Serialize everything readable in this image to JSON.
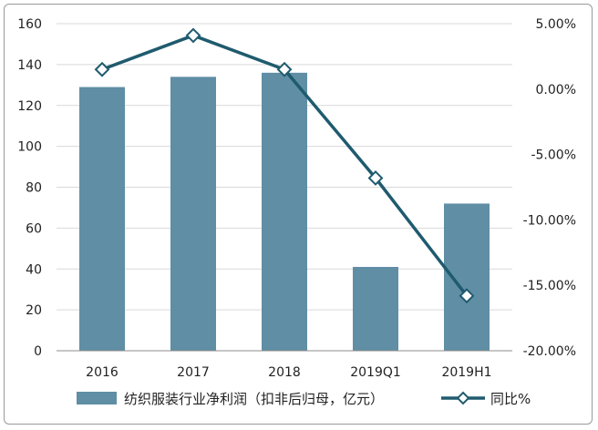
{
  "chart_data": {
    "type": "bar",
    "categories": [
      "2016",
      "2017",
      "2018",
      "2019Q1",
      "2019H1"
    ],
    "series": [
      {
        "name": "纺织服装行业净利润（扣非后归母，亿元）",
        "type": "bar",
        "axis": "left",
        "values": [
          129,
          134,
          136,
          41,
          72
        ]
      },
      {
        "name": "同比%",
        "type": "line",
        "axis": "right",
        "values": [
          1.5,
          4.1,
          1.5,
          -6.8,
          -15.8
        ]
      }
    ],
    "left_axis": {
      "ylim": [
        0,
        160
      ],
      "ticks": [
        "0",
        "20",
        "40",
        "60",
        "80",
        "100",
        "120",
        "140",
        "160"
      ]
    },
    "right_axis": {
      "ylim": [
        -20,
        5
      ],
      "ticks": [
        "-20.00%",
        "-15.00%",
        "-10.00%",
        "-5.00%",
        "0.00%",
        "5.00%"
      ]
    },
    "grid": true,
    "legend": "bottom",
    "colors": {
      "bar": "#5f8ea5",
      "line": "#1f5b6e",
      "grid": "#d9d9d9",
      "axis": "#8c8c8c"
    }
  }
}
